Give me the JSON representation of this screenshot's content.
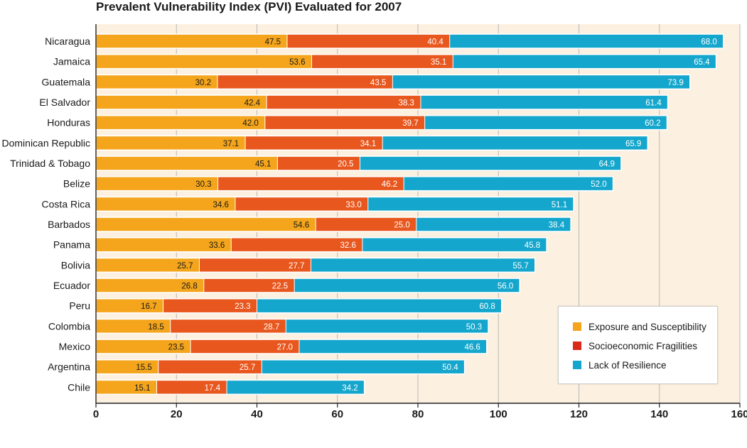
{
  "chart_data": {
    "type": "bar",
    "orientation": "horizontal",
    "stacked": true,
    "title": "Prevalent Vulnerability Index (PVI) Evaluated for 2007",
    "xlabel": "",
    "ylabel": "",
    "xlim": [
      0,
      160
    ],
    "xticks": [
      "0",
      "20",
      "40",
      "60",
      "80",
      "100",
      "120",
      "140",
      "160"
    ],
    "grid": "vertical",
    "legend_position": "bottom-right",
    "categories": [
      "Nicaragua",
      "Jamaica",
      "Guatemala",
      "El Salvador",
      "Honduras",
      "Dominican Republic",
      "Trinidad & Tobago",
      "Belize",
      "Costa Rica",
      "Barbados",
      "Panama",
      "Bolivia",
      "Ecuador",
      "Peru",
      "Colombia",
      "Mexico",
      "Argentina",
      "Chile"
    ],
    "series": [
      {
        "name": "Exposure and Susceptibility",
        "color": "#f4a51c",
        "values": [
          47.5,
          53.6,
          30.2,
          42.4,
          42.0,
          37.1,
          45.1,
          30.3,
          34.6,
          54.6,
          33.6,
          25.7,
          26.8,
          16.7,
          18.5,
          23.5,
          15.5,
          15.1
        ],
        "labels": [
          "47.5",
          "53.6",
          "30.2",
          "42.4",
          "42.0",
          "37.1",
          "45.1",
          "30.3",
          "34.6",
          "54.6",
          "33.6",
          "25.7",
          "26.8",
          "16.7",
          "18.5",
          "23.5",
          "15.5",
          "15.1"
        ]
      },
      {
        "name": "Socioeconomic Fragilities",
        "color": "#e8571e",
        "legend_color": "#d92a1c",
        "values": [
          40.4,
          35.1,
          43.5,
          38.3,
          39.7,
          34.1,
          20.5,
          46.2,
          33.0,
          25.0,
          32.6,
          27.7,
          22.5,
          23.3,
          28.7,
          27.0,
          25.7,
          17.4
        ],
        "labels": [
          "40.4",
          "35.1",
          "43.5",
          "38.3",
          "39.7",
          "34.1",
          "20.5",
          "46.2",
          "33.0",
          "25.0",
          "32.6",
          "27.7",
          "22.5",
          "23.3",
          "28.7",
          "27.0",
          "25.7",
          "17.4"
        ]
      },
      {
        "name": "Lack of Resilience",
        "color": "#14a6cc",
        "values": [
          68.0,
          65.4,
          73.9,
          61.4,
          60.2,
          65.9,
          64.9,
          52.0,
          51.1,
          38.4,
          45.8,
          55.7,
          56.0,
          60.8,
          50.3,
          46.6,
          50.4,
          34.2
        ],
        "labels": [
          "68.0",
          "65.4",
          "73.9",
          "61.4",
          "60.2",
          "65.9",
          "64.9",
          "52.0",
          "51.1",
          "38.4",
          "45.8",
          "55.7",
          "56.0",
          "60.8",
          "50.3",
          "46.6",
          "50.4",
          "34.2"
        ]
      }
    ],
    "colors": {
      "plot_background": "#fcf0e0",
      "grid": "#b8b8b8",
      "axis": "#222222"
    }
  }
}
